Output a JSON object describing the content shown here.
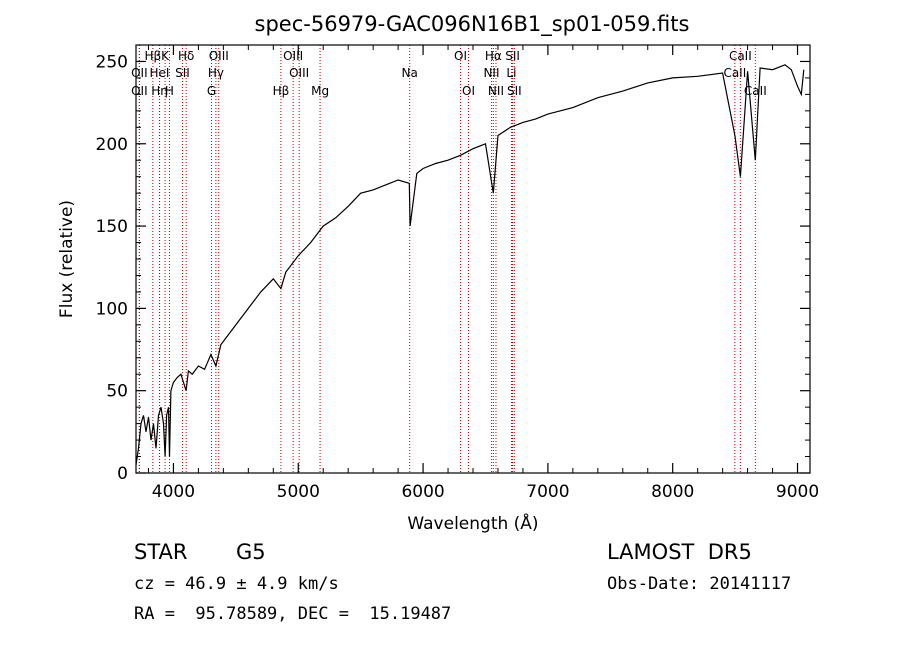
{
  "chart_data": {
    "type": "line",
    "title": "spec-56979-GAC096N16B1_sp01-059.fits",
    "xlabel": "Wavelength (Å)",
    "ylabel": "Flux (relative)",
    "xlim": [
      3700,
      9100
    ],
    "ylim": [
      0,
      260
    ],
    "x_ticks": [
      4000,
      5000,
      6000,
      7000,
      8000,
      9000
    ],
    "y_ticks": [
      0,
      50,
      100,
      150,
      200,
      250
    ],
    "grid": false,
    "series": [
      {
        "x": [
          3700,
          3720,
          3740,
          3760,
          3780,
          3800,
          3820,
          3840,
          3860,
          3880,
          3900,
          3920,
          3933,
          3945,
          3960,
          3968,
          3980,
          4000,
          4030,
          4060,
          4101,
          4120,
          4150,
          4200,
          4250,
          4300,
          4340,
          4380,
          4450,
          4500,
          4600,
          4700,
          4800,
          4861,
          4900,
          5000,
          5100,
          5200,
          5300,
          5400,
          5500,
          5600,
          5700,
          5800,
          5890,
          5896,
          5950,
          6000,
          6100,
          6200,
          6300,
          6400,
          6500,
          6563,
          6600,
          6700,
          6800,
          6900,
          7000,
          7200,
          7400,
          7600,
          7800,
          8000,
          8200,
          8400,
          8498,
          8542,
          8600,
          8662,
          8700,
          8800,
          8900,
          8950,
          9000,
          9030,
          9050
        ],
        "y": [
          5,
          15,
          30,
          35,
          25,
          34,
          20,
          30,
          15,
          35,
          40,
          30,
          10,
          35,
          40,
          10,
          50,
          55,
          58,
          60,
          50,
          62,
          60,
          65,
          63,
          72,
          65,
          78,
          85,
          90,
          100,
          110,
          118,
          112,
          122,
          132,
          140,
          150,
          155,
          162,
          170,
          172,
          175,
          178,
          176,
          150,
          182,
          185,
          188,
          190,
          193,
          197,
          200,
          170,
          205,
          210,
          213,
          215,
          218,
          222,
          228,
          232,
          237,
          240,
          241,
          243,
          205,
          180,
          244,
          190,
          246,
          245,
          248,
          245,
          235,
          230,
          245
        ]
      }
    ],
    "lines": [
      {
        "label": "Hβ",
        "x": 3835,
        "row": 0
      },
      {
        "label": "OII",
        "x": 3727,
        "row": 1
      },
      {
        "label": "OII",
        "x": 3727,
        "row": 2
      },
      {
        "label": "Hη",
        "x": 3889,
        "row": 2
      },
      {
        "label": "HeI",
        "x": 3888,
        "row": 1
      },
      {
        "label": "K",
        "x": 3933,
        "row": 0
      },
      {
        "label": "H",
        "x": 3968,
        "row": 2
      },
      {
        "label": "Hδ",
        "x": 4102,
        "row": 0
      },
      {
        "label": "SII",
        "x": 4072,
        "row": 1
      },
      {
        "label": "OIII",
        "x": 4363,
        "row": 0
      },
      {
        "label": "Hγ",
        "x": 4340,
        "row": 1
      },
      {
        "label": "G",
        "x": 4305,
        "row": 2
      },
      {
        "label": "Hβ",
        "x": 4861,
        "row": 2
      },
      {
        "label": "OIII",
        "x": 4959,
        "row": 0
      },
      {
        "label": "OIII",
        "x": 5007,
        "row": 1
      },
      {
        "label": "Mg",
        "x": 5175,
        "row": 2
      },
      {
        "label": "Na",
        "x": 5893,
        "row": 1
      },
      {
        "label": "OI",
        "x": 6300,
        "row": 0
      },
      {
        "label": "OI",
        "x": 6364,
        "row": 2
      },
      {
        "label": "Hα",
        "x": 6563,
        "row": 0
      },
      {
        "label": "NII",
        "x": 6548,
        "row": 1
      },
      {
        "label": "NII",
        "x": 6584,
        "row": 2
      },
      {
        "label": "SII",
        "x": 6717,
        "row": 0
      },
      {
        "label": "Li",
        "x": 6708,
        "row": 1
      },
      {
        "label": "SII",
        "x": 6731,
        "row": 2
      },
      {
        "label": "CaII",
        "x": 8542,
        "row": 0
      },
      {
        "label": "CaII",
        "x": 8498,
        "row": 1
      },
      {
        "label": "CaII",
        "x": 8662,
        "row": 2
      }
    ]
  },
  "info": {
    "class_label": "STAR",
    "subclass": "G5",
    "survey": "LAMOST  DR5",
    "cz": "cz = 46.9 ± 4.9 km/s",
    "obs_date": "Obs-Date: 20141117",
    "coords": "RA =  95.78589, DEC =  15.19487"
  }
}
